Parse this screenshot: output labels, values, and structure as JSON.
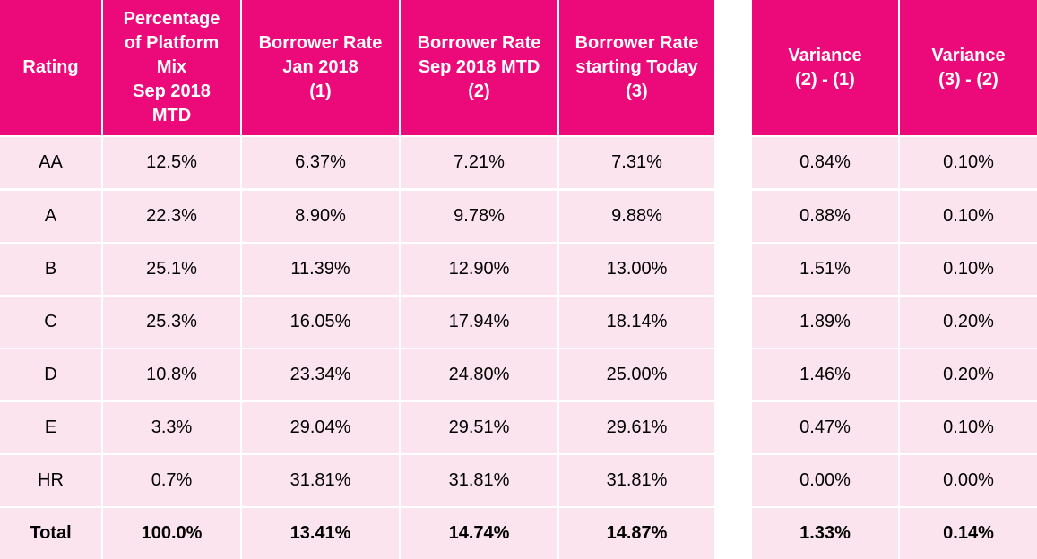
{
  "headers": [
    "Rating",
    "Percentage of Platform Mix Sep 2018 MTD",
    "Borrower Rate Jan 2018 (1)",
    "Borrower Rate Sep 2018 MTD (2)",
    "Borrower Rate starting Today (3)",
    "Variance (2) - (1)",
    "Variance (3) - (2)"
  ],
  "header_lines": [
    [
      "Rating"
    ],
    [
      "Percentage",
      "of Platform",
      "Mix",
      "Sep 2018",
      "MTD"
    ],
    [
      "Borrower Rate",
      "Jan 2018",
      "(1)"
    ],
    [
      "Borrower Rate",
      "Sep 2018 MTD",
      "(2)"
    ],
    [
      "Borrower Rate",
      "starting Today",
      "(3)"
    ],
    [
      "Variance",
      "(2) - (1)"
    ],
    [
      "Variance",
      "(3) - (2)"
    ]
  ],
  "rows": [
    [
      "AA",
      "12.5%",
      "6.37%",
      "7.21%",
      "7.31%",
      "0.84%",
      "0.10%"
    ],
    [
      "A",
      "22.3%",
      "8.90%",
      "9.78%",
      "9.88%",
      "0.88%",
      "0.10%"
    ],
    [
      "B",
      "25.1%",
      "11.39%",
      "12.90%",
      "13.00%",
      "1.51%",
      "0.10%"
    ],
    [
      "C",
      "25.3%",
      "16.05%",
      "17.94%",
      "18.14%",
      "1.89%",
      "0.20%"
    ],
    [
      "D",
      "10.8%",
      "23.34%",
      "24.80%",
      "25.00%",
      "1.46%",
      "0.20%"
    ],
    [
      "E",
      "3.3%",
      "29.04%",
      "29.51%",
      "29.61%",
      "0.47%",
      "0.10%"
    ],
    [
      "HR",
      "0.7%",
      "31.81%",
      "31.81%",
      "31.81%",
      "0.00%",
      "0.00%"
    ]
  ],
  "total_row": [
    "Total",
    "100.0%",
    "13.41%",
    "14.74%",
    "14.87%",
    "1.33%",
    "0.14%"
  ],
  "colors": {
    "header_bg": "#EC0A7A",
    "header_text": "#FFFFFF",
    "body_bg": "#FBE4ED",
    "body_text": "#000000"
  }
}
